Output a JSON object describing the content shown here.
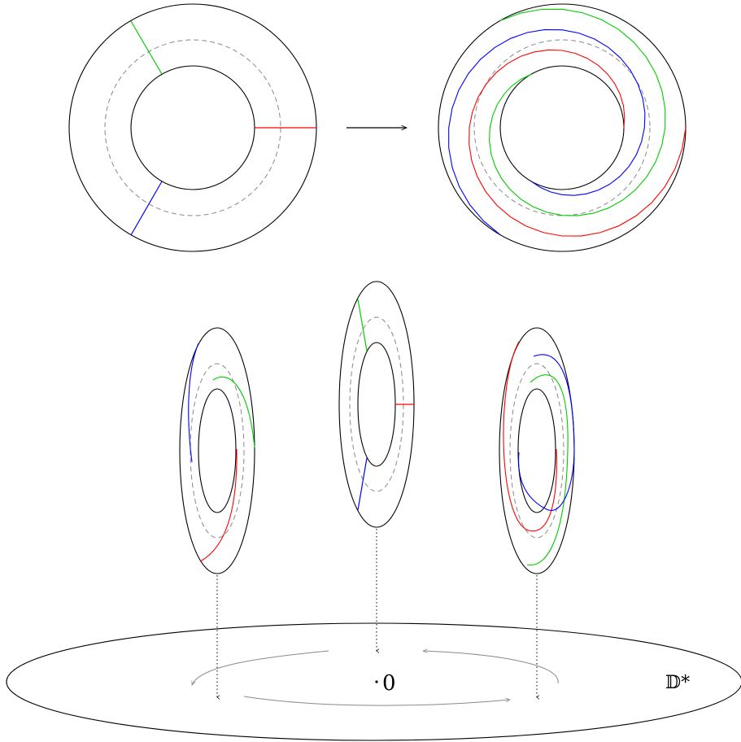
{
  "labels": {
    "origin": "0",
    "space": "𝔻*"
  },
  "colors": {
    "outline": "#000000",
    "guide": "#8a8a8a",
    "arrow_gray": "#8a8a8a",
    "curve_red": "#ff0000",
    "curve_green": "#00cc00",
    "curve_blue": "#0000ff"
  }
}
